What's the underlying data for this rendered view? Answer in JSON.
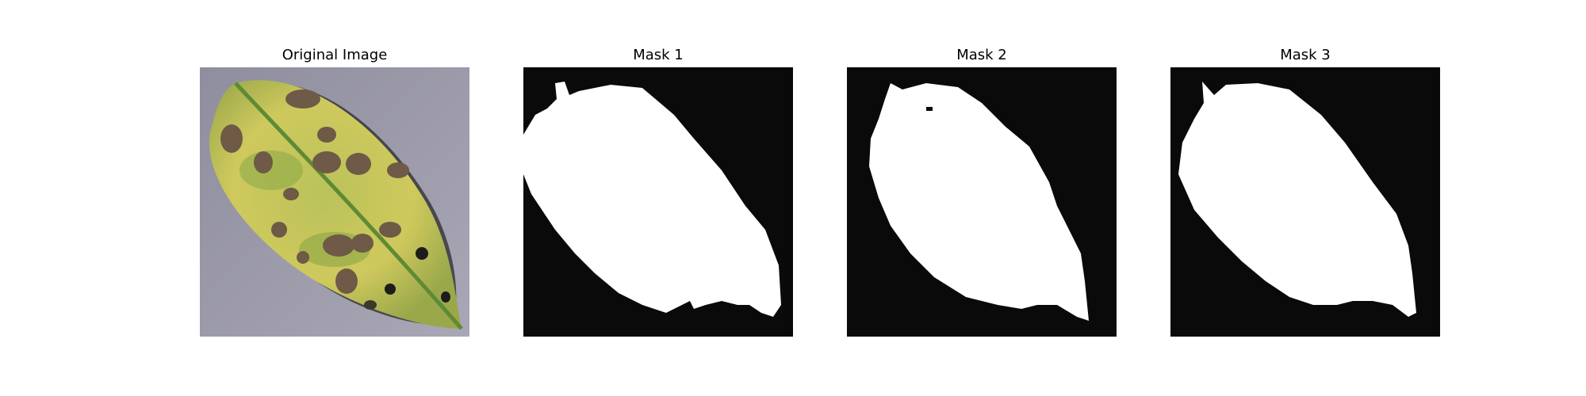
{
  "panels": [
    {
      "title": "Original Image"
    },
    {
      "title": "Mask 1"
    },
    {
      "title": "Mask 2"
    },
    {
      "title": "Mask 3"
    }
  ],
  "colors": {
    "background": "#0a0a0a",
    "mask_foreground": "#ffffff",
    "leaf_base": "#c9c45a",
    "leaf_dark": "#7a9a3a",
    "lesion": "#6e5a46",
    "surface": "#9a98a8"
  }
}
